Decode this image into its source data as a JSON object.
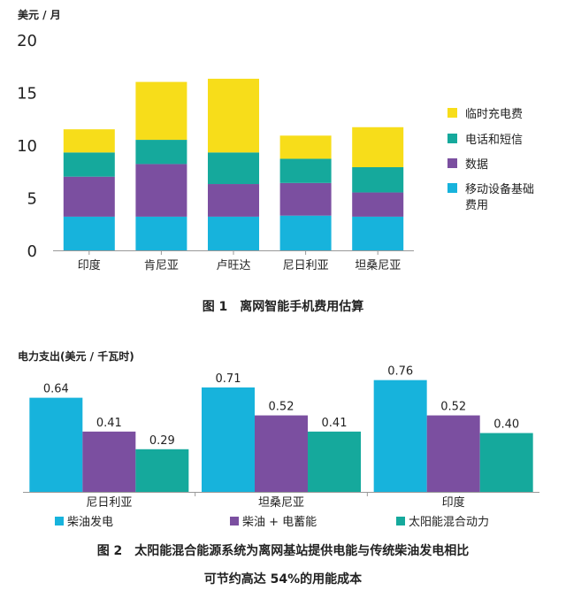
{
  "chart_data": [
    {
      "type": "bar",
      "stacked": true,
      "unit_label": "美元 / 月",
      "categories": [
        "印度",
        "肯尼亚",
        "卢旺达",
        "尼日利亚",
        "坦桑尼亚"
      ],
      "series": [
        {
          "name": "移动设备基础费用",
          "color": "#17b3dc",
          "values": [
            3.2,
            3.2,
            3.2,
            3.3,
            3.2
          ]
        },
        {
          "name": "数据",
          "color": "#7b4fa0",
          "values": [
            3.8,
            5.0,
            3.1,
            3.1,
            2.3
          ]
        },
        {
          "name": "电话和短信",
          "color": "#15a99c",
          "values": [
            2.3,
            2.3,
            3.0,
            2.3,
            2.4
          ]
        },
        {
          "name": "临时充电费",
          "color": "#f7dd1a",
          "values": [
            2.2,
            5.5,
            7.0,
            2.2,
            3.8
          ]
        }
      ],
      "legend_order": [
        3,
        2,
        1,
        0
      ],
      "legend_lines": [
        [
          "临时充电费"
        ],
        [
          "电话和短信"
        ],
        [
          "数据"
        ],
        [
          "移动设备基础",
          "费用"
        ]
      ],
      "yticks": [
        0,
        5,
        10,
        15,
        20
      ],
      "ylim": [
        0,
        20
      ],
      "caption": "图 1　离网智能手机费用估算"
    },
    {
      "type": "bar",
      "grouped": true,
      "unit_label": "电力支出(美元 / 千瓦时)",
      "categories": [
        "尼日利亚",
        "坦桑尼亚",
        "印度"
      ],
      "series": [
        {
          "name": "柴油发电",
          "color": "#17b3dc",
          "values": [
            0.64,
            0.71,
            0.76
          ]
        },
        {
          "name": "柴油 + 电蓄能",
          "color": "#7b4fa0",
          "values": [
            0.41,
            0.52,
            0.52
          ]
        },
        {
          "name": "太阳能混合动力",
          "color": "#15a99c",
          "values": [
            0.29,
            0.41,
            0.4
          ]
        }
      ],
      "value_labels": [
        [
          "0.64",
          "0.71",
          "0.76"
        ],
        [
          "0.41",
          "0.52",
          "0.52"
        ],
        [
          "0.29",
          "0.41",
          "0.40"
        ]
      ],
      "ylim": [
        0,
        0.8
      ],
      "caption_lines": [
        "图 2　太阳能混合能源系统为离网基站提供电能与传统柴油发电相比",
        "可节约高达 54%的用能成本"
      ]
    }
  ]
}
